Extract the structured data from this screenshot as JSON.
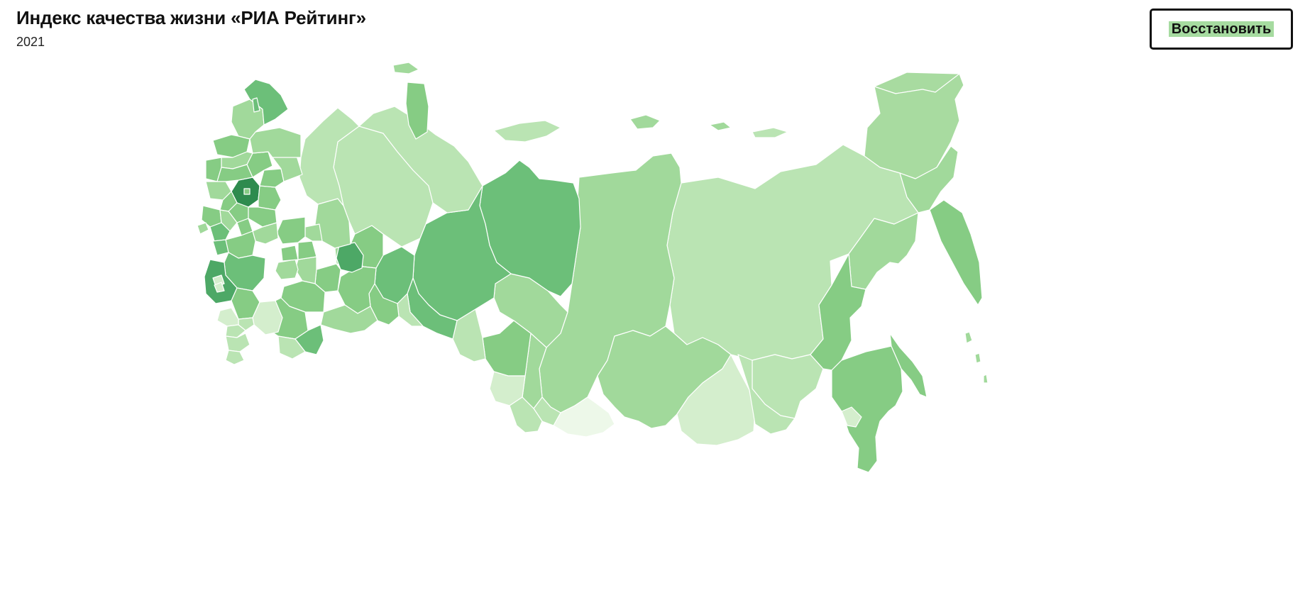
{
  "header": {
    "title": "Индекс качества жизни «РИА Рейтинг»",
    "subtitle": "2021"
  },
  "controls": {
    "restore_label": "Восстановить"
  },
  "map": {
    "type": "choropleth",
    "region": "Russia",
    "color_scale": [
      "#edf8e9",
      "#d4eecd",
      "#bae4b3",
      "#a1d99b",
      "#86cc84",
      "#6cbf79",
      "#4da866",
      "#2e8b4e"
    ],
    "legend": "none"
  }
}
